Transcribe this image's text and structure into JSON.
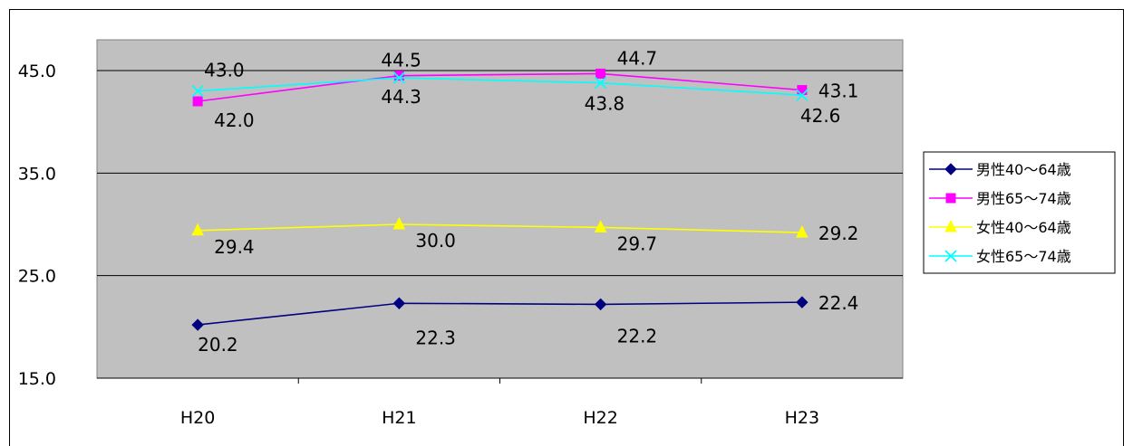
{
  "chart_data": {
    "type": "line",
    "categories": [
      "H20",
      "H21",
      "H22",
      "H23"
    ],
    "yticks": [
      "15.0",
      "25.0",
      "35.0",
      "45.0"
    ],
    "ylim": [
      15,
      48
    ],
    "grid": true,
    "legend_position": "right",
    "plot_background": "#c0c0c0",
    "series": [
      {
        "name": "男性40～64歳",
        "color": "#000080",
        "marker": "diamond",
        "values": [
          20.2,
          22.3,
          22.2,
          22.4
        ],
        "labels": [
          "20.2",
          "22.3",
          "22.2",
          "22.4"
        ]
      },
      {
        "name": "男性65～74歳",
        "color": "#ff00ff",
        "marker": "square",
        "values": [
          42.0,
          44.5,
          44.7,
          43.1
        ],
        "labels": [
          "42.0",
          "44.5",
          "44.7",
          "43.1"
        ]
      },
      {
        "name": "女性40～64歳",
        "color": "#ffff00",
        "marker": "triangle",
        "values": [
          29.4,
          30.0,
          29.7,
          29.2
        ],
        "labels": [
          "29.4",
          "30.0",
          "29.7",
          "29.2"
        ]
      },
      {
        "name": "女性65～74歳",
        "color": "#00ffff",
        "marker": "x",
        "values": [
          43.0,
          44.3,
          43.8,
          42.6
        ],
        "labels": [
          "43.0",
          "44.3",
          "43.8",
          "42.6"
        ]
      }
    ]
  }
}
